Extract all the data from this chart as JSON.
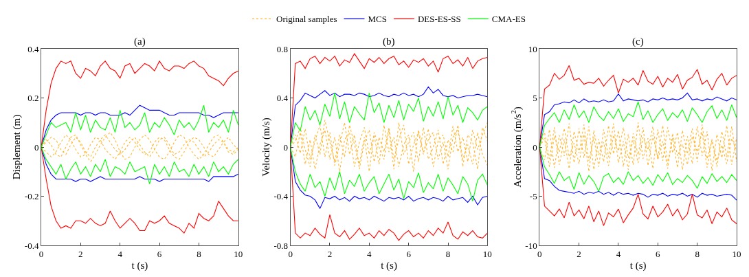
{
  "chart_data": [
    {
      "type": "line",
      "title": "(a)",
      "xlabel": "t (s)",
      "ylabel": "Displement (m)",
      "legend": "top",
      "x": [
        0,
        0.25,
        0.5,
        0.75,
        1,
        1.25,
        1.5,
        1.75,
        2,
        2.25,
        2.5,
        2.75,
        3,
        3.25,
        3.5,
        3.75,
        4,
        4.25,
        4.5,
        4.75,
        5,
        5.25,
        5.5,
        5.75,
        6,
        6.25,
        6.5,
        6.75,
        7,
        7.25,
        7.5,
        7.75,
        8,
        8.25,
        8.5,
        8.75,
        9,
        9.25,
        9.5,
        9.75,
        10
      ],
      "xlim": [
        0,
        10
      ],
      "xticks": [
        0,
        2,
        4,
        6,
        8,
        10
      ],
      "ylim": [
        -0.4,
        0.4
      ],
      "yticks": [
        -0.4,
        -0.2,
        0,
        0.2,
        0.4
      ],
      "series": [
        {
          "name": "Original samples",
          "color": "#ffb833",
          "line_style": "dotted",
          "values": [
            0,
            0.02,
            0.04,
            0.03,
            -0.01,
            -0.03,
            0.01,
            0.04,
            0.02,
            -0.02,
            -0.04,
            0.0,
            0.03,
            0.05,
            0.02,
            -0.01,
            -0.03,
            -0.01,
            0.02,
            0.04,
            0.01,
            -0.02,
            -0.04,
            -0.01,
            0.03,
            0.04,
            0.01,
            -0.03,
            -0.02,
            0.01,
            0.03,
            0.02,
            -0.01,
            -0.04,
            -0.02,
            0.01,
            0.03,
            0.02,
            -0.01,
            -0.02,
            0.0
          ]
        },
        {
          "color": "#ffb833",
          "line_style": "dotted",
          "values": [
            0,
            -0.02,
            -0.04,
            -0.02,
            0.02,
            0.05,
            0.03,
            -0.01,
            -0.04,
            -0.03,
            0.01,
            0.04,
            0.03,
            -0.01,
            -0.03,
            -0.05,
            -0.02,
            0.02,
            0.04,
            0.02,
            -0.01,
            -0.03,
            -0.02,
            0.02,
            0.04,
            0.03,
            -0.01,
            -0.04,
            -0.05,
            -0.02,
            0.02,
            0.04,
            0.03,
            0.0,
            -0.03,
            -0.04,
            -0.01,
            0.02,
            0.04,
            0.01,
            -0.01
          ]
        },
        {
          "color": "#ffb833",
          "line_style": "dotted",
          "values": [
            0,
            0.03,
            0.01,
            -0.03,
            -0.04,
            0.0,
            0.04,
            0.05,
            0.01,
            -0.03,
            -0.06,
            -0.03,
            0.01,
            0.04,
            0.06,
            0.03,
            -0.02,
            -0.05,
            -0.04,
            0.0,
            0.03,
            0.05,
            0.03,
            -0.01,
            -0.04,
            -0.05,
            -0.02,
            0.02,
            0.05,
            0.04,
            0.0,
            -0.03,
            -0.05,
            -0.03,
            0.01,
            0.04,
            0.05,
            0.02,
            -0.02,
            -0.03,
            -0.01
          ]
        },
        {
          "name": "MCS",
          "color": "#0000ff",
          "line_style": "solid",
          "x": [
            10,
            9.75,
            9.5,
            9.25,
            9,
            8.75,
            8.5,
            8.25,
            8,
            7.75,
            7.5,
            7.25,
            7,
            6.75,
            6.5,
            6.25,
            6,
            5.75,
            5.5,
            5.25,
            5,
            4.75,
            4.5,
            4.25,
            4,
            3.75,
            3.5,
            3.25,
            3,
            2.75,
            2.5,
            2.25,
            2,
            1.75,
            1.5,
            1.25,
            1,
            0.75,
            0.5,
            0.25,
            0,
            0.25,
            0.5,
            0.75,
            1,
            1.25,
            1.5,
            1.75,
            2,
            2.25,
            2.5,
            2.75,
            3,
            3.25,
            3.5,
            3.75,
            4,
            4.25,
            4.5,
            4.75,
            5,
            5.25,
            5.5,
            5.75,
            6,
            6.25,
            6.5,
            6.75,
            7,
            7.25,
            7.5,
            7.75,
            8,
            8.25,
            8.5,
            8.75,
            9,
            9.25,
            9.5,
            9.75,
            10
          ],
          "values": [
            0.14,
            0.14,
            0.14,
            0.14,
            0.13,
            0.12,
            0.13,
            0.13,
            0.14,
            0.14,
            0.14,
            0.14,
            0.14,
            0.13,
            0.13,
            0.14,
            0.15,
            0.15,
            0.15,
            0.16,
            0.17,
            0.15,
            0.13,
            0.14,
            0.13,
            0.13,
            0.13,
            0.14,
            0.14,
            0.13,
            0.14,
            0.14,
            0.13,
            0.14,
            0.14,
            0.14,
            0.14,
            0.13,
            0.11,
            0.07,
            0,
            -0.07,
            -0.11,
            -0.13,
            -0.13,
            -0.13,
            -0.13,
            -0.14,
            -0.13,
            -0.13,
            -0.14,
            -0.13,
            -0.12,
            -0.13,
            -0.13,
            -0.13,
            -0.13,
            -0.13,
            -0.13,
            -0.13,
            -0.12,
            -0.13,
            -0.13,
            -0.13,
            -0.14,
            -0.13,
            -0.13,
            -0.13,
            -0.13,
            -0.13,
            -0.13,
            -0.13,
            -0.13,
            -0.13,
            -0.14,
            -0.12,
            -0.12,
            -0.12,
            -0.12,
            -0.12,
            -0.11
          ]
        },
        {
          "name": "DES-ES-SS",
          "color": "#ff0000",
          "line_style": "solid",
          "x": [
            10,
            9.75,
            9.5,
            9.25,
            9,
            8.75,
            8.5,
            8.25,
            8,
            7.75,
            7.5,
            7.25,
            7,
            6.75,
            6.5,
            6.25,
            6,
            5.75,
            5.5,
            5.25,
            5,
            4.75,
            4.5,
            4.25,
            4,
            3.75,
            3.5,
            3.25,
            3,
            2.75,
            2.5,
            2.25,
            2,
            1.75,
            1.5,
            1.25,
            1,
            0.75,
            0.5,
            0.25,
            0,
            0.25,
            0.5,
            0.75,
            1,
            1.25,
            1.5,
            1.75,
            2,
            2.25,
            2.5,
            2.75,
            3,
            3.25,
            3.5,
            3.75,
            4,
            4.25,
            4.5,
            4.75,
            5,
            5.25,
            5.5,
            5.75,
            6,
            6.25,
            6.5,
            6.75,
            7,
            7.25,
            7.5,
            7.75,
            8,
            8.25,
            8.5,
            8.75,
            9,
            9.25,
            9.5,
            9.75,
            10
          ],
          "values": [
            0.31,
            0.3,
            0.28,
            0.25,
            0.27,
            0.28,
            0.29,
            0.32,
            0.33,
            0.35,
            0.34,
            0.32,
            0.33,
            0.33,
            0.31,
            0.32,
            0.35,
            0.31,
            0.33,
            0.34,
            0.32,
            0.3,
            0.34,
            0.33,
            0.28,
            0.31,
            0.32,
            0.35,
            0.33,
            0.29,
            0.31,
            0.32,
            0.28,
            0.3,
            0.35,
            0.34,
            0.35,
            0.32,
            0.26,
            0.15,
            0,
            -0.13,
            -0.24,
            -0.3,
            -0.33,
            -0.32,
            -0.33,
            -0.3,
            -0.3,
            -0.31,
            -0.29,
            -0.31,
            -0.32,
            -0.31,
            -0.26,
            -0.3,
            -0.33,
            -0.31,
            -0.29,
            -0.31,
            -0.34,
            -0.34,
            -0.3,
            -0.31,
            -0.3,
            -0.28,
            -0.31,
            -0.32,
            -0.33,
            -0.35,
            -0.31,
            -0.33,
            -0.27,
            -0.29,
            -0.3,
            -0.28,
            -0.22,
            -0.25,
            -0.28,
            -0.3,
            -0.3
          ]
        },
        {
          "name": "CMA-ES",
          "color": "#00ff00",
          "line_style": "solid",
          "x": [
            10,
            9.75,
            9.5,
            9.25,
            9,
            8.75,
            8.5,
            8.25,
            8,
            7.75,
            7.5,
            7.25,
            7,
            6.75,
            6.5,
            6.25,
            6,
            5.75,
            5.5,
            5.25,
            5,
            4.75,
            4.5,
            4.25,
            4,
            3.75,
            3.5,
            3.25,
            3,
            2.75,
            2.5,
            2.25,
            2,
            1.75,
            1.5,
            1.25,
            1,
            0.75,
            0.5,
            0.25,
            0,
            0.25,
            0.5,
            0.75,
            1,
            1.25,
            1.5,
            1.75,
            2,
            2.25,
            2.5,
            2.75,
            3,
            3.25,
            3.5,
            3.75,
            4,
            4.25,
            4.5,
            4.75,
            5,
            5.25,
            5.5,
            5.75,
            6,
            6.25,
            6.5,
            6.75,
            7,
            7.25,
            7.5,
            7.75,
            8,
            8.25,
            8.5,
            8.75,
            9,
            9.25,
            9.5,
            9.75,
            10
          ],
          "values": [
            0.09,
            0.15,
            0.06,
            0.11,
            0.08,
            0.1,
            0.06,
            0.17,
            0.11,
            0.07,
            0.1,
            0.08,
            0.11,
            0.05,
            0.09,
            0.12,
            0.08,
            0.1,
            0.06,
            0.14,
            0.09,
            0.07,
            0.1,
            0.08,
            0.15,
            0.06,
            0.12,
            0.07,
            0.08,
            0.11,
            0.06,
            0.13,
            0.07,
            0.14,
            0.06,
            0.1,
            0.09,
            0.08,
            0.1,
            0.05,
            0,
            -0.05,
            -0.08,
            -0.11,
            -0.07,
            -0.13,
            -0.09,
            -0.06,
            -0.11,
            -0.08,
            -0.12,
            -0.07,
            -0.1,
            -0.05,
            -0.12,
            -0.08,
            -0.09,
            -0.11,
            -0.06,
            -0.1,
            -0.09,
            -0.08,
            -0.15,
            -0.07,
            -0.11,
            -0.08,
            -0.12,
            -0.06,
            -0.1,
            -0.09,
            -0.12,
            -0.07,
            -0.11,
            -0.08,
            -0.12,
            -0.06,
            -0.1,
            -0.08,
            -0.11,
            -0.07,
            -0.05
          ]
        }
      ]
    },
    {
      "type": "line",
      "title": "(b)",
      "xlabel": "t (s)",
      "ylabel": "Velocity (m/s)",
      "x": [
        0,
        0.25,
        0.5,
        0.75,
        1,
        1.25,
        1.5,
        1.75,
        2,
        2.25,
        2.5,
        2.75,
        3,
        3.25,
        3.5,
        3.75,
        4,
        4.25,
        4.5,
        4.75,
        5,
        5.25,
        5.5,
        5.75,
        6,
        6.25,
        6.5,
        6.75,
        7,
        7.25,
        7.5,
        7.75,
        8,
        8.25,
        8.5,
        8.75,
        9,
        9.25,
        9.5,
        9.75,
        10
      ],
      "xlim": [
        0,
        10
      ],
      "xticks": [
        0,
        2,
        4,
        6,
        8,
        10
      ],
      "ylim": [
        -0.8,
        0.8
      ],
      "yticks": [
        -0.8,
        -0.4,
        0,
        0.4,
        0.8
      ],
      "series": [
        {
          "color": "#ffb833",
          "line_style": "dotted",
          "values": [
            0,
            0.1,
            -0.05,
            0.15,
            -0.1,
            0.05,
            0.18,
            -0.08,
            0.12,
            -0.15,
            0.02,
            0.2,
            -0.06,
            0.1,
            -0.18,
            0.04,
            0.14,
            -0.12,
            0.08,
            -0.04,
            0.16,
            -0.1,
            0.06,
            0.18,
            -0.14,
            0.02,
            0.12,
            -0.06,
            0.15,
            -0.16,
            0.05,
            0.1,
            -0.08,
            0.17,
            -0.04,
            0.08,
            -0.12,
            0.14,
            -0.02,
            0.1,
            0.2
          ]
        },
        {
          "color": "#ffb833",
          "line_style": "dotted",
          "values": [
            0,
            -0.08,
            0.12,
            -0.14,
            0.06,
            -0.18,
            0.02,
            0.14,
            -0.1,
            0.08,
            -0.2,
            0.06,
            0.12,
            -0.16,
            0.04,
            0.16,
            -0.06,
            0.1,
            -0.14,
            0.18,
            -0.04,
            0.08,
            -0.16,
            0.02,
            0.1,
            -0.2,
            0.14,
            -0.04,
            0.06,
            0.12,
            -0.1,
            0.04,
            -0.18,
            0.08,
            0.14,
            -0.1,
            0.02,
            -0.14,
            0.12,
            -0.06,
            -0.15
          ]
        },
        {
          "color": "#ffb833",
          "line_style": "dotted",
          "values": [
            0,
            0.05,
            0.16,
            -0.02,
            -0.16,
            0.1,
            -0.06,
            0.22,
            0.04,
            -0.12,
            0.1,
            -0.08,
            0.18,
            0.02,
            -0.14,
            0.08,
            -0.2,
            0.12,
            0.0,
            -0.1,
            0.14,
            -0.18,
            0.2,
            -0.06,
            0.04,
            0.12,
            -0.12,
            0.16,
            -0.1,
            0.0,
            0.14,
            -0.14,
            0.06,
            -0.04,
            0.18,
            -0.16,
            0.1,
            0.04,
            -0.18,
            0.16,
            0.05
          ]
        },
        {
          "color": "#0000ff",
          "line_style": "solid",
          "x": [
            10,
            9.75,
            9.5,
            9.25,
            9,
            8.75,
            8.5,
            8.25,
            8,
            7.75,
            7.5,
            7.25,
            7,
            6.75,
            6.5,
            6.25,
            6,
            5.75,
            5.5,
            5.25,
            5,
            4.75,
            4.5,
            4.25,
            4,
            3.75,
            3.5,
            3.25,
            3,
            2.75,
            2.5,
            2.25,
            2,
            1.75,
            1.5,
            1.25,
            1,
            0.75,
            0.5,
            0.25,
            0,
            0.25,
            0.5,
            0.75,
            1,
            1.25,
            1.5,
            1.75,
            2,
            2.25,
            2.5,
            2.75,
            3,
            3.25,
            3.5,
            3.75,
            4,
            4.25,
            4.5,
            4.75,
            5,
            5.25,
            5.5,
            5.75,
            6,
            6.25,
            6.5,
            6.75,
            7,
            7.25,
            7.5,
            7.75,
            8,
            8.25,
            8.5,
            8.75,
            9,
            9.25,
            9.5,
            9.75,
            10
          ],
          "values": [
            0.41,
            0.42,
            0.43,
            0.42,
            0.42,
            0.41,
            0.4,
            0.42,
            0.41,
            0.42,
            0.47,
            0.44,
            0.49,
            0.43,
            0.41,
            0.43,
            0.42,
            0.44,
            0.42,
            0.43,
            0.41,
            0.42,
            0.44,
            0.42,
            0.41,
            0.43,
            0.44,
            0.42,
            0.43,
            0.43,
            0.41,
            0.44,
            0.42,
            0.46,
            0.43,
            0.4,
            0.42,
            0.44,
            0.38,
            0.34,
            0,
            -0.28,
            -0.35,
            -0.39,
            -0.4,
            -0.43,
            -0.5,
            -0.41,
            -0.42,
            -0.4,
            -0.43,
            -0.41,
            -0.44,
            -0.4,
            -0.42,
            -0.41,
            -0.43,
            -0.4,
            -0.42,
            -0.44,
            -0.41,
            -0.42,
            -0.41,
            -0.43,
            -0.4,
            -0.44,
            -0.42,
            -0.41,
            -0.43,
            -0.41,
            -0.42,
            -0.44,
            -0.4,
            -0.43,
            -0.42,
            -0.41,
            -0.45,
            -0.4,
            -0.47,
            -0.41,
            -0.4
          ]
        },
        {
          "color": "#ff0000",
          "line_style": "solid",
          "x": [
            10,
            9.75,
            9.5,
            9.25,
            9,
            8.75,
            8.5,
            8.25,
            8,
            7.75,
            7.5,
            7.25,
            7,
            6.75,
            6.5,
            6.25,
            6,
            5.75,
            5.5,
            5.25,
            5,
            4.75,
            4.5,
            4.25,
            4,
            3.75,
            3.5,
            3.25,
            3,
            2.75,
            2.5,
            2.25,
            2,
            1.75,
            1.5,
            1.25,
            1,
            0.75,
            0.5,
            0.25,
            0,
            0.25,
            0.5,
            0.75,
            1,
            1.25,
            1.5,
            1.75,
            2,
            2.25,
            2.5,
            2.75,
            3,
            3.25,
            3.5,
            3.75,
            4,
            4.25,
            4.5,
            4.75,
            5,
            5.25,
            5.5,
            5.75,
            6,
            6.25,
            6.5,
            6.75,
            7,
            7.25,
            7.5,
            7.75,
            8,
            8.25,
            8.5,
            8.75,
            9,
            9.25,
            9.5,
            9.75,
            10
          ],
          "values": [
            0.73,
            0.72,
            0.7,
            0.64,
            0.73,
            0.66,
            0.71,
            0.68,
            0.74,
            0.72,
            0.61,
            0.7,
            0.66,
            0.72,
            0.69,
            0.71,
            0.65,
            0.7,
            0.67,
            0.74,
            0.72,
            0.68,
            0.73,
            0.69,
            0.72,
            0.64,
            0.7,
            0.76,
            0.69,
            0.71,
            0.66,
            0.74,
            0.7,
            0.73,
            0.68,
            0.74,
            0.72,
            0.64,
            0.7,
            0.68,
            0,
            -0.7,
            -0.74,
            -0.7,
            -0.72,
            -0.66,
            -0.71,
            -0.74,
            -0.55,
            -0.7,
            -0.73,
            -0.68,
            -0.75,
            -0.71,
            -0.66,
            -0.72,
            -0.7,
            -0.74,
            -0.68,
            -0.72,
            -0.67,
            -0.7,
            -0.76,
            -0.71,
            -0.68,
            -0.73,
            -0.7,
            -0.74,
            -0.68,
            -0.72,
            -0.66,
            -0.7,
            -0.61,
            -0.72,
            -0.75,
            -0.69,
            -0.72,
            -0.68,
            -0.73,
            -0.74,
            -0.7
          ]
        },
        {
          "color": "#00ff00",
          "line_style": "solid",
          "x": [
            10,
            9.75,
            9.5,
            9.25,
            9,
            8.75,
            8.5,
            8.25,
            8,
            7.75,
            7.5,
            7.25,
            7,
            6.75,
            6.5,
            6.25,
            6,
            5.75,
            5.5,
            5.25,
            5,
            4.75,
            4.5,
            4.25,
            4,
            3.75,
            3.5,
            3.25,
            3,
            2.75,
            2.5,
            2.25,
            2,
            1.75,
            1.5,
            1.25,
            1,
            0.75,
            0.5,
            0.25,
            0,
            0.25,
            0.5,
            0.75,
            1,
            1.25,
            1.5,
            1.75,
            2,
            2.25,
            2.5,
            2.75,
            3,
            3.25,
            3.5,
            3.75,
            4,
            4.25,
            4.5,
            4.75,
            5,
            5.25,
            5.5,
            5.75,
            6,
            6.25,
            6.5,
            6.75,
            7,
            7.25,
            7.5,
            7.75,
            8,
            8.25,
            8.5,
            8.75,
            9,
            9.25,
            9.5,
            9.75,
            10
          ],
          "values": [
            0.33,
            0.3,
            0.22,
            0.28,
            0.32,
            0.2,
            0.34,
            0.26,
            0.41,
            0.23,
            0.37,
            0.25,
            0.33,
            0.21,
            0.4,
            0.29,
            0.35,
            0.22,
            0.38,
            0.24,
            0.34,
            0.2,
            0.36,
            0.28,
            0.44,
            0.22,
            0.27,
            0.33,
            0.2,
            0.37,
            0.23,
            0.44,
            0.25,
            0.35,
            0.18,
            0.3,
            0.22,
            0.33,
            0.13,
            0.2,
            0,
            -0.2,
            -0.3,
            -0.36,
            -0.22,
            -0.33,
            -0.28,
            -0.4,
            -0.25,
            -0.35,
            -0.2,
            -0.38,
            -0.27,
            -0.32,
            -0.22,
            -0.36,
            -0.29,
            -0.24,
            -0.38,
            -0.3,
            -0.22,
            -0.35,
            -0.26,
            -0.42,
            -0.28,
            -0.33,
            -0.21,
            -0.37,
            -0.29,
            -0.34,
            -0.22,
            -0.36,
            -0.25,
            -0.31,
            -0.38,
            -0.24,
            -0.3,
            -0.44,
            -0.27,
            -0.22,
            -0.31
          ]
        }
      ]
    },
    {
      "type": "line",
      "title": "(c)",
      "xlabel": "t (s)",
      "ylabel": "Acceleration (m/s$^{2}$)",
      "x": [
        0,
        0.25,
        0.5,
        0.75,
        1,
        1.25,
        1.5,
        1.75,
        2,
        2.25,
        2.5,
        2.75,
        3,
        3.25,
        3.5,
        3.75,
        4,
        4.25,
        4.5,
        4.75,
        5,
        5.25,
        5.5,
        5.75,
        6,
        6.25,
        6.5,
        6.75,
        7,
        7.25,
        7.5,
        7.75,
        8,
        8.25,
        8.5,
        8.75,
        9,
        9.25,
        9.5,
        9.75,
        10
      ],
      "xlim": [
        0,
        10
      ],
      "xticks": [
        0,
        2,
        4,
        6,
        8,
        10
      ],
      "ylim": [
        -10,
        10
      ],
      "yticks": [
        -10,
        -5,
        0,
        5,
        10
      ],
      "series": [
        {
          "color": "#ffb833",
          "line_style": "dotted",
          "values": [
            0,
            1.5,
            -1.2,
            2.0,
            -1.8,
            0.8,
            -2.2,
            1.6,
            -0.6,
            2.3,
            -1.4,
            1.0,
            -2.0,
            1.8,
            -1.0,
            2.4,
            -1.6,
            0.6,
            -2.3,
            1.4,
            -0.8,
            2.0,
            -1.9,
            1.2,
            -1.1,
            2.2,
            -1.7,
            0.9,
            -2.1,
            1.7,
            -0.7,
            1.9,
            -1.5,
            2.3,
            -1.2,
            0.7,
            -2.0,
            1.6,
            -1.0,
            2.1,
            -1.5
          ]
        },
        {
          "color": "#ffb833",
          "line_style": "dotted",
          "values": [
            0,
            -1.3,
            1.8,
            -2.1,
            1.2,
            -0.9,
            2.4,
            -1.6,
            1.9,
            -1.1,
            2.1,
            -2.3,
            0.8,
            -1.5,
            2.2,
            -0.7,
            1.7,
            -2.0,
            1.3,
            -1.8,
            2.5,
            -1.2,
            0.9,
            -2.2,
            1.8,
            -1.4,
            2.0,
            -0.6,
            1.5,
            -2.3,
            1.1,
            -1.7,
            2.1,
            -0.9,
            1.6,
            -2.4,
            1.3,
            -1.1,
            2.2,
            -1.8,
            1.0
          ]
        },
        {
          "color": "#ffb833",
          "line_style": "dotted",
          "values": [
            0,
            0.9,
            -2.0,
            1.1,
            -0.5,
            1.9,
            -1.0,
            0.4,
            -1.7,
            1.3,
            -2.5,
            1.7,
            -0.8,
            0.5,
            -1.9,
            1.2,
            -0.4,
            2.0,
            -1.1,
            0.7,
            -1.6,
            1.0,
            -0.3,
            2.1,
            -1.3,
            0.6,
            -2.2,
            1.4,
            -0.9,
            0.3,
            -1.8,
            1.1,
            -0.5,
            1.5,
            -2.1,
            0.8,
            -1.4,
            0.2,
            -1.7,
            0.9,
            -0.4
          ]
        },
        {
          "color": "#0000ff",
          "line_style": "solid",
          "x": [
            10,
            9.75,
            9.5,
            9.25,
            9,
            8.75,
            8.5,
            8.25,
            8,
            7.75,
            7.5,
            7.25,
            7,
            6.75,
            6.5,
            6.25,
            6,
            5.75,
            5.5,
            5.25,
            5,
            4.75,
            4.5,
            4.25,
            4,
            3.75,
            3.5,
            3.25,
            3,
            2.75,
            2.5,
            2.25,
            2,
            1.75,
            1.5,
            1.25,
            1,
            0.75,
            0.5,
            0.25,
            0,
            0.25,
            0.5,
            0.75,
            1,
            1.25,
            1.5,
            1.75,
            2,
            2.25,
            2.5,
            2.75,
            3,
            3.25,
            3.5,
            3.75,
            4,
            4.25,
            4.5,
            4.75,
            5,
            5.25,
            5.5,
            5.75,
            6,
            6.25,
            6.5,
            6.75,
            7,
            7.25,
            7.5,
            7.75,
            8,
            8.25,
            8.5,
            8.75,
            9,
            9.25,
            9.5,
            9.75,
            10
          ],
          "values": [
            4.8,
            5.0,
            4.7,
            4.9,
            5.1,
            4.8,
            4.9,
            4.7,
            4.9,
            4.8,
            5.5,
            5.0,
            4.8,
            4.9,
            4.8,
            5.0,
            4.8,
            4.9,
            4.6,
            4.8,
            4.7,
            4.8,
            4.9,
            4.7,
            5.4,
            4.7,
            4.6,
            4.8,
            4.6,
            4.7,
            4.6,
            4.9,
            4.5,
            4.8,
            4.5,
            4.6,
            4.4,
            4.3,
            3.6,
            3.3,
            0,
            -3.2,
            -3.4,
            -4.0,
            -4.4,
            -4.5,
            -4.6,
            -4.7,
            -4.5,
            -4.8,
            -4.6,
            -4.7,
            -4.5,
            -4.8,
            -4.6,
            -4.9,
            -4.6,
            -4.8,
            -4.7,
            -4.9,
            -4.7,
            -4.8,
            -5.1,
            -4.8,
            -4.9,
            -4.7,
            -5.0,
            -4.8,
            -4.9,
            -4.7,
            -5.0,
            -4.8,
            -5.1,
            -4.7,
            -4.9,
            -4.8,
            -5.0,
            -4.9,
            -4.8,
            -4.9,
            -5.4
          ]
        },
        {
          "color": "#ff0000",
          "line_style": "solid",
          "x": [
            10,
            9.75,
            9.5,
            9.25,
            9,
            8.75,
            8.5,
            8.25,
            8,
            7.75,
            7.5,
            7.25,
            7,
            6.75,
            6.5,
            6.25,
            6,
            5.75,
            5.5,
            5.25,
            5,
            4.75,
            4.5,
            4.25,
            4,
            3.75,
            3.5,
            3.25,
            3,
            2.75,
            2.5,
            2.25,
            2,
            1.75,
            1.5,
            1.25,
            1,
            0.75,
            0.5,
            0.25,
            0,
            0.25,
            0.5,
            0.75,
            1,
            1.25,
            1.5,
            1.75,
            2,
            2.25,
            2.5,
            2.75,
            3,
            3.25,
            3.5,
            3.75,
            4,
            4.25,
            4.5,
            4.75,
            5,
            5.25,
            5.5,
            5.75,
            6,
            6.25,
            6.5,
            6.75,
            7,
            7.25,
            7.5,
            7.75,
            8,
            8.25,
            8.5,
            8.75,
            9,
            9.25,
            9.5,
            9.75,
            10
          ],
          "values": [
            7.3,
            7.0,
            6.3,
            7.5,
            6.9,
            5.8,
            6.8,
            6.4,
            7.9,
            7.1,
            6.8,
            5.9,
            7.4,
            6.6,
            7.0,
            6.1,
            7.2,
            6.4,
            6.7,
            7.8,
            6.3,
            7.0,
            6.6,
            6.9,
            5.5,
            7.3,
            6.8,
            6.2,
            7.0,
            6.5,
            6.6,
            6.4,
            7.0,
            6.8,
            8.3,
            7.3,
            6.9,
            7.5,
            6.3,
            5.9,
            0,
            -6.0,
            -6.5,
            -7.0,
            -6.3,
            -7.2,
            -5.6,
            -7.0,
            -6.4,
            -7.3,
            -6.0,
            -7.6,
            -6.5,
            -8.0,
            -6.7,
            -7.1,
            -6.3,
            -7.7,
            -6.9,
            -6.2,
            -4.8,
            -6.8,
            -7.3,
            -6.0,
            -7.1,
            -6.6,
            -5.8,
            -7.0,
            -6.3,
            -7.4,
            -6.8,
            -4.8,
            -6.9,
            -7.2,
            -6.4,
            -7.8,
            -6.6,
            -7.1,
            -6.2,
            -7.4,
            -7.8
          ]
        },
        {
          "color": "#00ff00",
          "line_style": "solid",
          "x": [
            10,
            9.75,
            9.5,
            9.25,
            9,
            8.75,
            8.5,
            8.25,
            8,
            7.75,
            7.5,
            7.25,
            7,
            6.75,
            6.5,
            6.25,
            6,
            5.75,
            5.5,
            5.25,
            5,
            4.75,
            4.5,
            4.25,
            4,
            3.75,
            3.5,
            3.25,
            3,
            2.75,
            2.5,
            2.25,
            2,
            1.75,
            1.5,
            1.25,
            1,
            0.75,
            0.5,
            0.25,
            0,
            0.25,
            0.5,
            0.75,
            1,
            1.25,
            1.5,
            1.75,
            2,
            2.25,
            2.5,
            2.75,
            3,
            3.25,
            3.5,
            3.75,
            4,
            4.25,
            4.5,
            4.75,
            5,
            5.25,
            5.5,
            5.75,
            6,
            6.25,
            6.5,
            6.75,
            7,
            7.25,
            7.5,
            7.75,
            8,
            8.25,
            8.5,
            8.75,
            9,
            9.25,
            9.5,
            9.75,
            10
          ],
          "values": [
            3.0,
            4.3,
            2.7,
            3.8,
            2.9,
            4.2,
            3.6,
            2.5,
            3.3,
            4.0,
            2.6,
            3.8,
            3.0,
            3.5,
            2.7,
            3.9,
            3.3,
            2.5,
            3.7,
            2.8,
            4.6,
            3.1,
            3.4,
            2.6,
            3.9,
            2.9,
            3.6,
            2.7,
            3.2,
            4.1,
            2.5,
            3.7,
            3.0,
            4.3,
            2.8,
            3.8,
            2.5,
            3.5,
            2.9,
            2.2,
            0,
            -2.0,
            -2.8,
            -3.7,
            -2.5,
            -3.4,
            -3.0,
            -4.3,
            -2.6,
            -3.8,
            -2.9,
            -3.5,
            -4.5,
            -3.0,
            -2.7,
            -3.6,
            -3.1,
            -3.8,
            -2.5,
            -3.4,
            -2.9,
            -3.7,
            -3.1,
            -3.9,
            -2.8,
            -3.5,
            -2.6,
            -3.8,
            -3.2,
            -3.6,
            -2.9,
            -3.4,
            -4.2,
            -3.0,
            -3.7,
            -2.7,
            -3.5,
            -3.0,
            -3.6,
            -2.8,
            -3.4
          ]
        }
      ]
    }
  ]
}
